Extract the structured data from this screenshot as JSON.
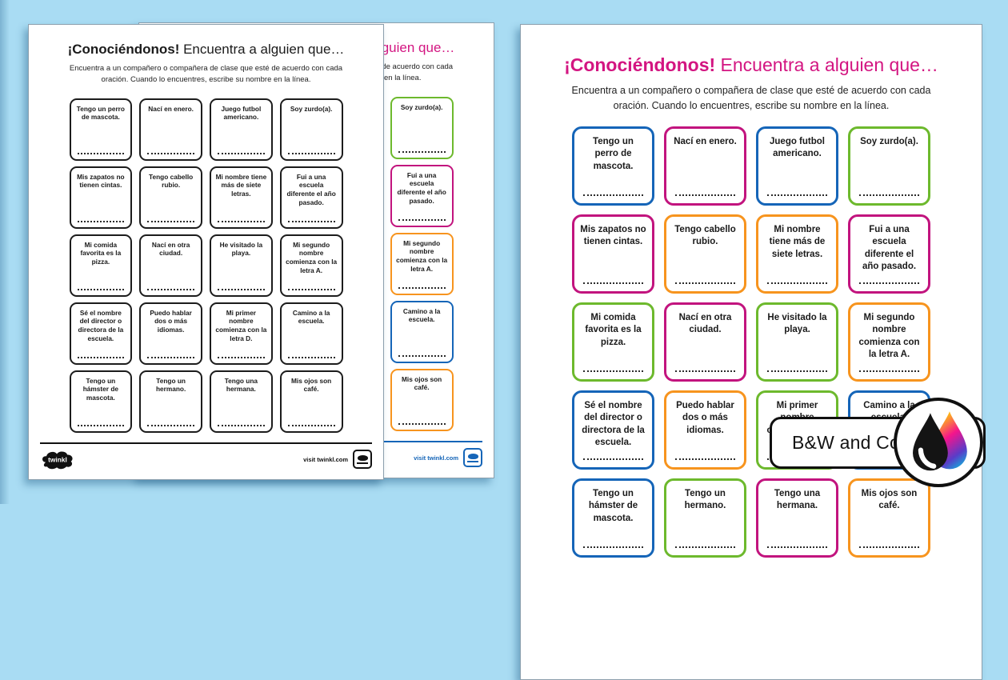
{
  "colors": {
    "background": "#a9dcf3",
    "blue": "#1565b8",
    "magenta": "#c2147e",
    "green": "#6db92d",
    "orange": "#f7941e",
    "title_pink": "#d31581",
    "bw_border": "#1c1c1c"
  },
  "worksheet": {
    "title_bold": "¡Conociéndonos!",
    "title_rest": "Encuentra a alguien que…",
    "instructions": [
      "Encuentra a un compañero o compañera de clase que esté de acuerdo con cada",
      "oración. Cuando lo encuentres, escribe su nombre en la línea."
    ],
    "cards": [
      {
        "text": "Tengo un perro de mascota.",
        "color": "blue"
      },
      {
        "text": "Nací en enero.",
        "color": "magenta"
      },
      {
        "text": "Juego futbol americano.",
        "color": "blue"
      },
      {
        "text": "Soy zurdo(a).",
        "color": "green"
      },
      {
        "text": "Mis zapatos no tienen cintas.",
        "color": "magenta"
      },
      {
        "text": "Tengo cabello rubio.",
        "color": "orange"
      },
      {
        "text": "Mi nombre tiene más de siete letras.",
        "color": "orange"
      },
      {
        "text": "Fui a una escuela diferente el año pasado.",
        "color": "magenta"
      },
      {
        "text": "Mi comida favorita es la pizza.",
        "color": "green"
      },
      {
        "text": "Nací en otra ciudad.",
        "color": "magenta"
      },
      {
        "text": "He visitado la playa.",
        "color": "green"
      },
      {
        "text": "Mi segundo nombre comienza con la letra A.",
        "color": "orange"
      },
      {
        "text": "Sé el nombre del director o directora de la escuela.",
        "color": "blue"
      },
      {
        "text": "Puedo hablar dos o más idiomas.",
        "color": "orange"
      },
      {
        "text": "Mi primer nombre comienza con la letra D.",
        "color": "green"
      },
      {
        "text": "Camino a la escuela.",
        "color": "blue"
      },
      {
        "text": "Tengo un hámster de mascota.",
        "color": "blue"
      },
      {
        "text": "Tengo un hermano.",
        "color": "green"
      },
      {
        "text": "Tengo una hermana.",
        "color": "magenta"
      },
      {
        "text": "Mis ojos son café.",
        "color": "orange"
      }
    ]
  },
  "footer": {
    "brand": "twinkl",
    "visit_text": "visit twinkl.com"
  },
  "badge": {
    "label": "B&W and Color",
    "icon": "ink-drops-icon"
  }
}
